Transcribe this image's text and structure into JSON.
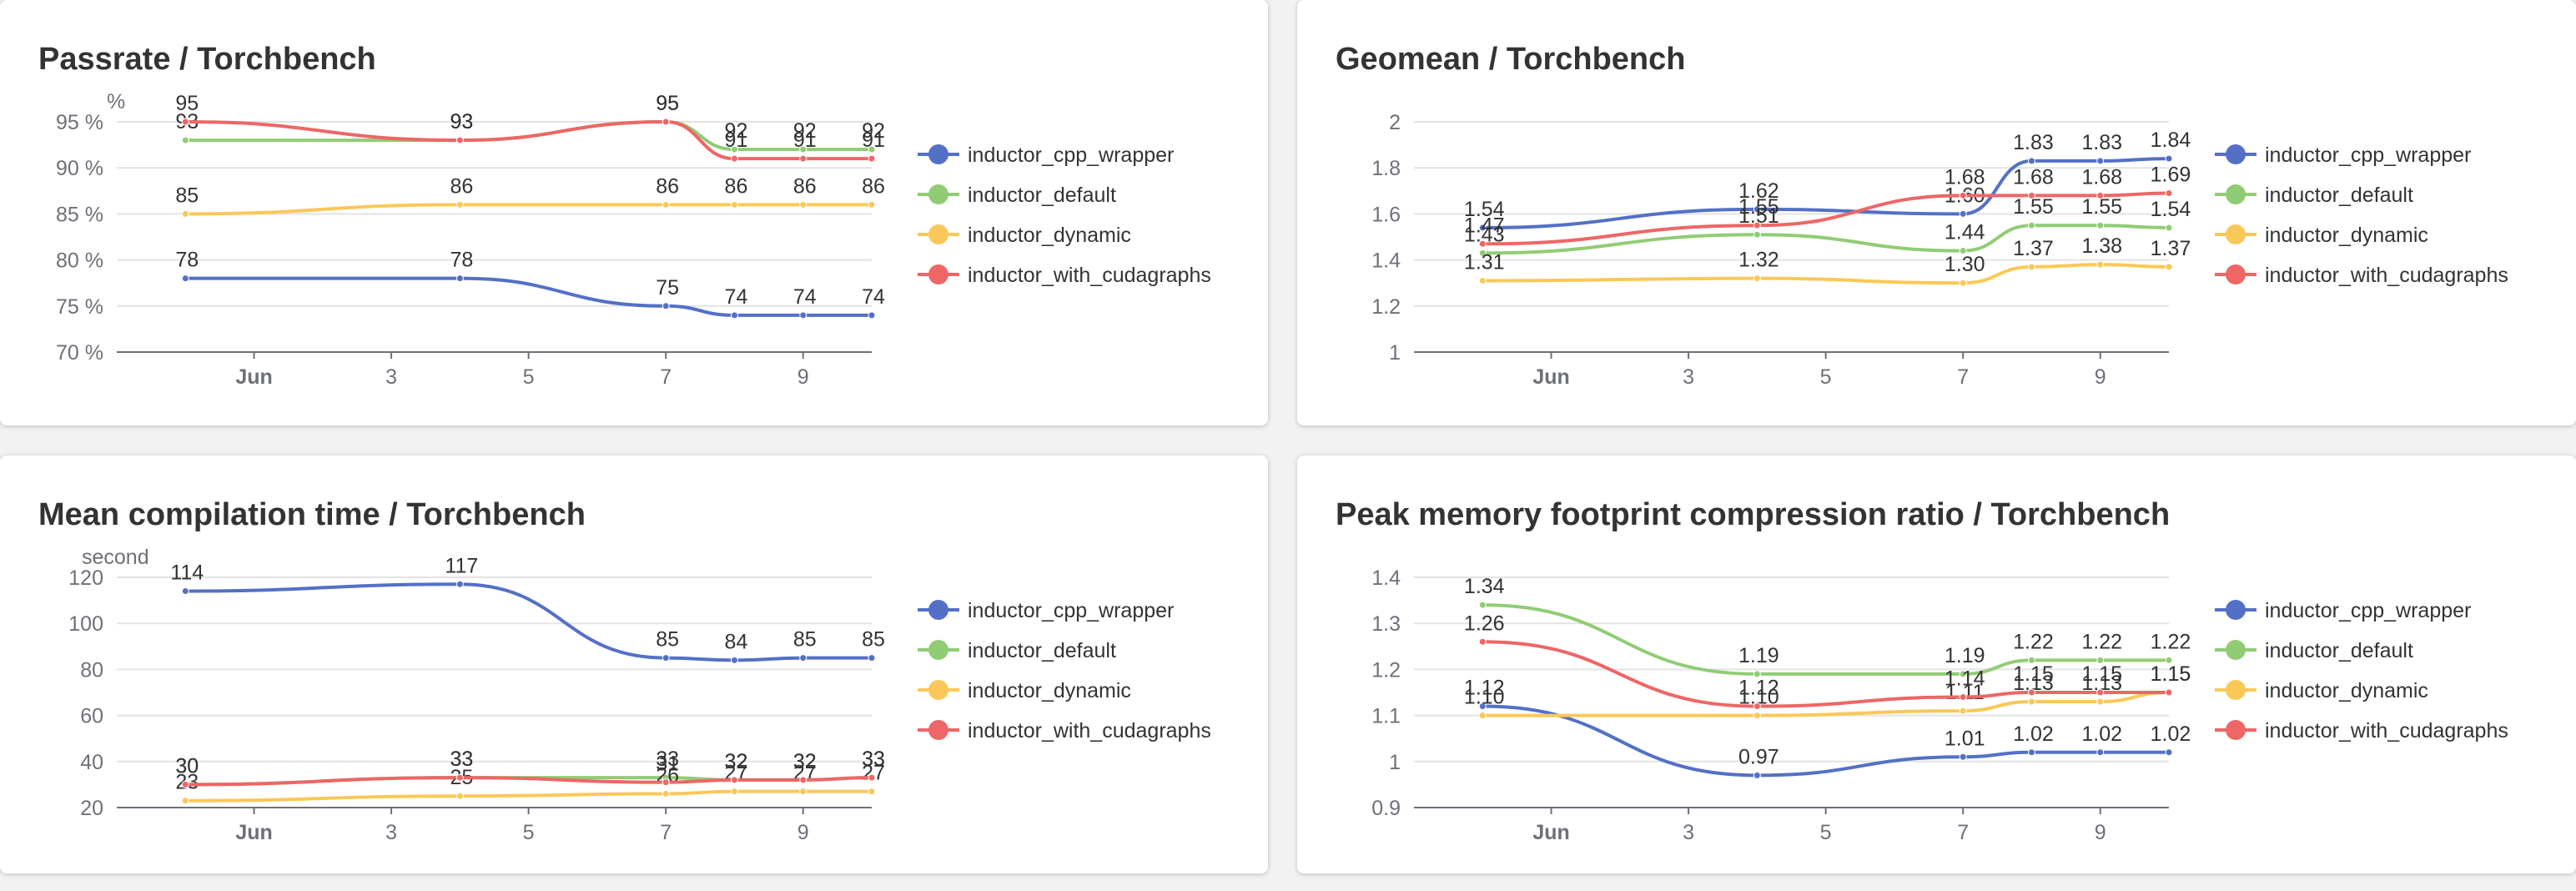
{
  "colors": {
    "inductor_cpp_wrapper": "#5470c6",
    "inductor_default": "#91cc75",
    "inductor_dynamic": "#fac858",
    "inductor_with_cudagraphs": "#ee6666"
  },
  "chart_data": [
    {
      "type": "line",
      "title": "Passrate / Torchbench",
      "y_unit": "%",
      "y_tick_suffix": " %",
      "ylim": [
        70,
        95
      ],
      "y_ticks": [
        70,
        75,
        80,
        85,
        90,
        95
      ],
      "x_tick_labels": [
        "Jun",
        "3",
        "5",
        "7",
        "9"
      ],
      "grid": true,
      "legend_position": "right",
      "x": [
        "2024-05-31",
        "2024-06-04",
        "2024-06-07",
        "2024-06-08",
        "2024-06-09",
        "2024-06-10"
      ],
      "series": [
        {
          "name": "inductor_cpp_wrapper",
          "values": [
            78,
            78,
            75,
            74,
            74,
            74
          ]
        },
        {
          "name": "inductor_default",
          "values": [
            93,
            93,
            95,
            92,
            92,
            92
          ]
        },
        {
          "name": "inductor_dynamic",
          "values": [
            85,
            86,
            86,
            86,
            86,
            86
          ]
        },
        {
          "name": "inductor_with_cudagraphs",
          "values": [
            95,
            93,
            95,
            91,
            91,
            91
          ]
        }
      ]
    },
    {
      "type": "line",
      "title": "Geomean / Torchbench",
      "y_unit": "",
      "y_tick_suffix": "",
      "ylim": [
        1,
        2
      ],
      "y_ticks": [
        1,
        1.2,
        1.4,
        1.6,
        1.8,
        2
      ],
      "x_tick_labels": [
        "Jun",
        "3",
        "5",
        "7",
        "9"
      ],
      "grid": true,
      "legend_position": "right",
      "x": [
        "2024-05-31",
        "2024-06-04",
        "2024-06-07",
        "2024-06-08",
        "2024-06-09",
        "2024-06-10"
      ],
      "series": [
        {
          "name": "inductor_cpp_wrapper",
          "values": [
            1.54,
            1.62,
            1.6,
            1.83,
            1.83,
            1.84
          ]
        },
        {
          "name": "inductor_default",
          "values": [
            1.43,
            1.51,
            1.44,
            1.55,
            1.55,
            1.54
          ]
        },
        {
          "name": "inductor_dynamic",
          "values": [
            1.31,
            1.32,
            1.3,
            1.37,
            1.38,
            1.37
          ]
        },
        {
          "name": "inductor_with_cudagraphs",
          "values": [
            1.47,
            1.55,
            1.68,
            1.68,
            1.68,
            1.69
          ]
        }
      ]
    },
    {
      "type": "line",
      "title": "Mean compilation time / Torchbench",
      "y_unit": "second",
      "y_tick_suffix": "",
      "ylim": [
        20,
        120
      ],
      "y_ticks": [
        20,
        40,
        60,
        80,
        100,
        120
      ],
      "x_tick_labels": [
        "Jun",
        "3",
        "5",
        "7",
        "9"
      ],
      "grid": true,
      "legend_position": "right",
      "x": [
        "2024-05-31",
        "2024-06-04",
        "2024-06-07",
        "2024-06-08",
        "2024-06-09",
        "2024-06-10"
      ],
      "series": [
        {
          "name": "inductor_cpp_wrapper",
          "values": [
            114,
            117,
            85,
            84,
            85,
            85
          ]
        },
        {
          "name": "inductor_default",
          "values": [
            30,
            33,
            33,
            32,
            32,
            33
          ]
        },
        {
          "name": "inductor_dynamic",
          "values": [
            23,
            25,
            26,
            27,
            27,
            27
          ]
        },
        {
          "name": "inductor_with_cudagraphs",
          "values": [
            30,
            33,
            31,
            32,
            32,
            33
          ]
        }
      ]
    },
    {
      "type": "line",
      "title": "Peak memory footprint compression ratio / Torchbench",
      "y_unit": "",
      "y_tick_suffix": "",
      "ylim": [
        0.9,
        1.4
      ],
      "y_ticks": [
        0.9,
        1,
        1.1,
        1.2,
        1.3,
        1.4
      ],
      "x_tick_labels": [
        "Jun",
        "3",
        "5",
        "7",
        "9"
      ],
      "grid": true,
      "legend_position": "right",
      "x": [
        "2024-05-31",
        "2024-06-04",
        "2024-06-07",
        "2024-06-08",
        "2024-06-09",
        "2024-06-10"
      ],
      "series": [
        {
          "name": "inductor_cpp_wrapper",
          "values": [
            1.12,
            0.97,
            1.01,
            1.02,
            1.02,
            1.02
          ]
        },
        {
          "name": "inductor_default",
          "values": [
            1.34,
            1.19,
            1.19,
            1.22,
            1.22,
            1.22
          ]
        },
        {
          "name": "inductor_dynamic",
          "values": [
            1.1,
            1.1,
            1.11,
            1.13,
            1.13,
            1.15
          ]
        },
        {
          "name": "inductor_with_cudagraphs",
          "values": [
            1.26,
            1.12,
            1.14,
            1.15,
            1.15,
            1.15
          ]
        }
      ]
    }
  ]
}
